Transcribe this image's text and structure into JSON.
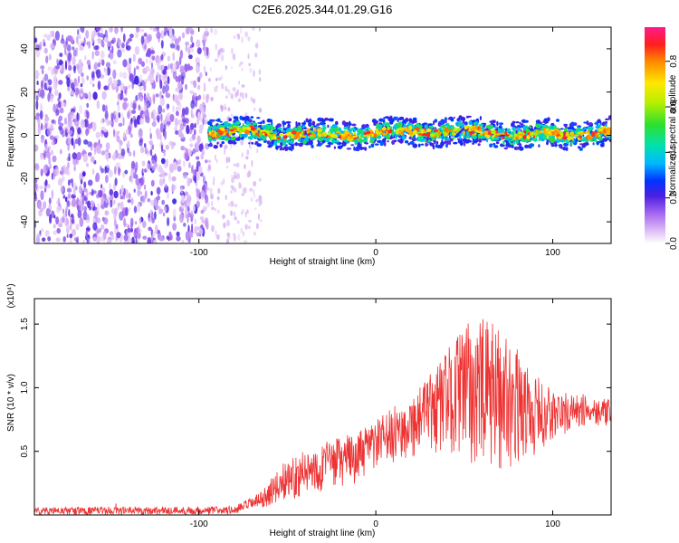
{
  "title": "C2E6.2025.344.01.29.G16",
  "chart_data": [
    {
      "type": "heatmap",
      "name": "spectrogram",
      "xlabel": "Height of straight line (km)",
      "ylabel": "Frequency (Hz)",
      "xlim": [
        -193,
        133
      ],
      "ylim": [
        -50,
        50
      ],
      "xticks": [
        -100,
        0,
        100
      ],
      "xtick_labels": [
        "-100",
        "0",
        "100"
      ],
      "yticks": [
        -40,
        -20,
        0,
        20,
        40
      ],
      "ytick_labels": [
        "-40",
        "-20",
        "0",
        "20",
        "40"
      ],
      "noise_region_km": [
        -193,
        -95
      ],
      "signal_start_km": -95,
      "signal_center_hz": 1,
      "signal_halfwidth_hz": 4,
      "colorbar": {
        "label": "Normalized spectral amplitude",
        "range": [
          0.0,
          0.95
        ],
        "ticks": [
          0.0,
          0.2,
          0.4,
          0.6,
          0.8
        ],
        "tick_labels": [
          "0.0",
          "0.2",
          "0.4",
          "0.6",
          "0.8"
        ]
      }
    },
    {
      "type": "line",
      "name": "snr",
      "xlabel": "Height of straight line (km)",
      "ylabel": "SNR (10 * v/v)",
      "y_multiplier": "(x10⁴)",
      "xlim": [
        -193,
        133
      ],
      "ylim": [
        0,
        1.7
      ],
      "xticks": [
        -100,
        0,
        100
      ],
      "xtick_labels": [
        "-100",
        "0",
        "100"
      ],
      "yticks": [
        0.5,
        1.0,
        1.5
      ],
      "ytick_labels": [
        "0.5",
        "1.0",
        "1.5"
      ],
      "color": "#ee3333",
      "envelope": {
        "x": [
          -193,
          -80,
          -65,
          -50,
          -40,
          -25,
          -10,
          0,
          10,
          20,
          30,
          40,
          50,
          60,
          70,
          80,
          90,
          100,
          110,
          120,
          133
        ],
        "lo": [
          0.0,
          0.0,
          0.05,
          0.12,
          0.15,
          0.2,
          0.25,
          0.35,
          0.4,
          0.45,
          0.45,
          0.5,
          0.45,
          0.3,
          0.35,
          0.4,
          0.45,
          0.55,
          0.65,
          0.7,
          0.7
        ],
        "hi": [
          0.06,
          0.07,
          0.18,
          0.45,
          0.5,
          0.6,
          0.65,
          0.75,
          0.85,
          0.95,
          1.1,
          1.3,
          1.5,
          1.55,
          1.5,
          1.3,
          1.1,
          1.0,
          0.95,
          0.95,
          0.9
        ]
      }
    }
  ]
}
